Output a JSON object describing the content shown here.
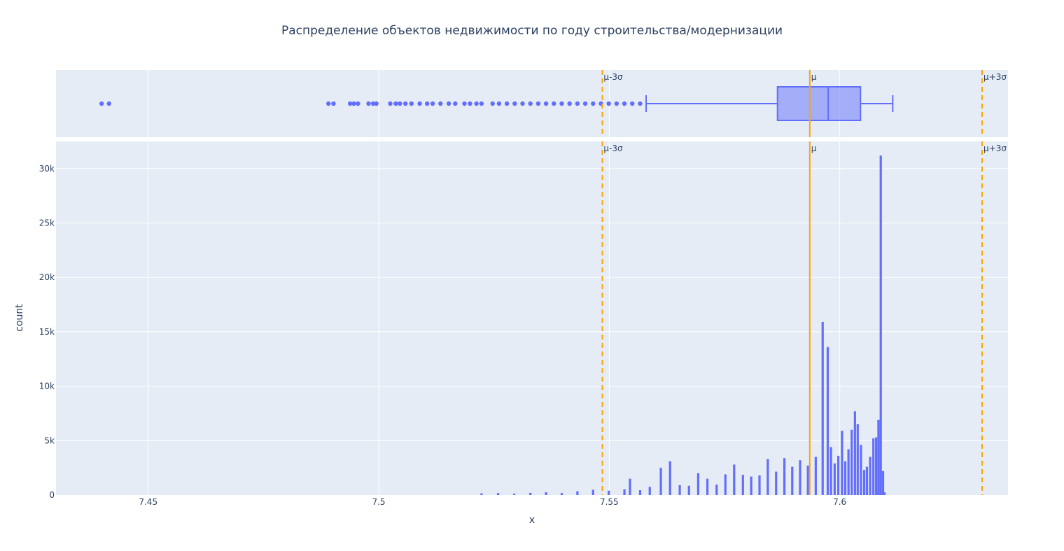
{
  "chart_data": {
    "type": "bar",
    "title": "Распределение объектов недвижимости по году строительства/модернизации",
    "xlabel": "x",
    "ylabel": "count",
    "xlim": [
      7.43,
      7.6365
    ],
    "ylim": [
      0,
      32500
    ],
    "x_ticks": [
      7.45,
      7.5,
      7.55,
      7.6
    ],
    "x_tick_labels": [
      "7.45",
      "7.5",
      "7.55",
      "7.6"
    ],
    "y_ticks": [
      0,
      5000,
      10000,
      15000,
      20000,
      25000,
      30000
    ],
    "y_tick_labels": [
      "0",
      "5k",
      "10k",
      "15k",
      "20k",
      "25k",
      "30k"
    ],
    "grid": true,
    "colors": {
      "bar": "#636efa",
      "box_fill": "rgba(99,110,250,0.5)",
      "reference_line": "#ffa500",
      "plot_bg": "#e5ecf6",
      "text": "#2a3f5f"
    },
    "reference_lines": [
      {
        "label": "μ-3σ",
        "x": 7.5485,
        "style": "dash"
      },
      {
        "label": "μ",
        "x": 7.5935,
        "style": "solid"
      },
      {
        "label": "μ+3σ",
        "x": 7.6385,
        "style": "dash"
      }
    ],
    "box": {
      "q1": 7.5865,
      "median": 7.5975,
      "q3": 7.6045,
      "lower_fence": 7.558,
      "upper_fence": 7.6115,
      "outliers": [
        7.4399,
        7.4415,
        7.4891,
        7.4902,
        7.4938,
        7.4946,
        7.4955,
        7.4978,
        7.4988,
        7.4995,
        7.5025,
        7.5037,
        7.5046,
        7.5058,
        7.5071,
        7.5089,
        7.5105,
        7.5117,
        7.5134,
        7.5152,
        7.5166,
        7.5186,
        7.5198,
        7.5212,
        7.5223,
        7.5247,
        7.5261,
        7.5278,
        7.5295,
        7.5312,
        7.5329,
        7.5346,
        7.5363,
        7.538,
        7.5397,
        7.5414,
        7.5431,
        7.5448,
        7.5465,
        7.5482,
        7.5499,
        7.5516,
        7.5533,
        7.555,
        7.5567
      ]
    },
    "histogram": {
      "x": [
        7.5223,
        7.5259,
        7.5294,
        7.5329,
        7.5363,
        7.5397,
        7.5431,
        7.5465,
        7.5499,
        7.5533,
        7.5545,
        7.5567,
        7.5588,
        7.5612,
        7.5632,
        7.5653,
        7.5673,
        7.5693,
        7.5713,
        7.5733,
        7.5752,
        7.5771,
        7.579,
        7.5808,
        7.5826,
        7.5844,
        7.5862,
        7.588,
        7.5897,
        7.5914,
        7.5931,
        7.5948,
        7.5963,
        7.5974,
        7.5981,
        7.5989,
        7.5997,
        7.6005,
        7.6012,
        7.6019,
        7.6026,
        7.6033,
        7.6039,
        7.6046,
        7.6053,
        7.6059,
        7.6066,
        7.6073,
        7.6079,
        7.6084,
        7.6089,
        7.6094,
        7.6097
      ],
      "y": [
        150,
        180,
        120,
        200,
        250,
        180,
        350,
        480,
        400,
        520,
        1500,
        450,
        750,
        2500,
        3100,
        900,
        850,
        2000,
        1500,
        950,
        1900,
        2800,
        1850,
        1700,
        1800,
        3300,
        2150,
        3400,
        2600,
        3200,
        2700,
        3500,
        15900,
        13600,
        4400,
        2900,
        3600,
        5900,
        3100,
        4200,
        6000,
        7700,
        6500,
        4600,
        2300,
        2600,
        3500,
        5200,
        5300,
        6900,
        31200,
        2200,
        250
      ]
    }
  }
}
